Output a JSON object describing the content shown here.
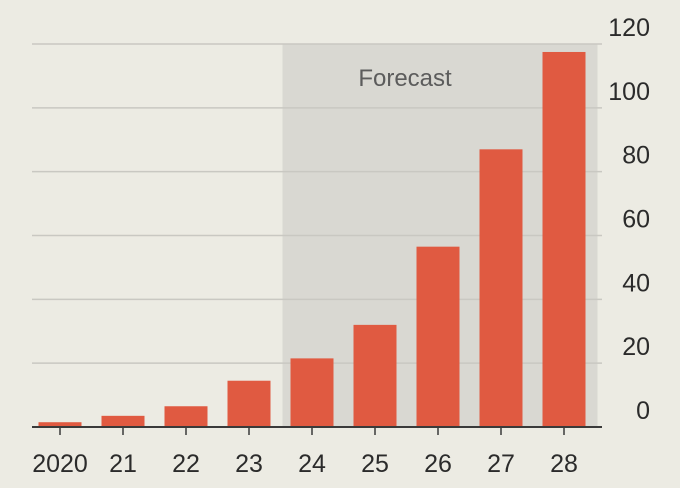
{
  "chart_data": {
    "type": "bar",
    "title": "",
    "xlabel": "",
    "ylabel": "",
    "categories": [
      "2020",
      "21",
      "22",
      "23",
      "24",
      "25",
      "26",
      "27",
      "28"
    ],
    "values": [
      1.5,
      3.5,
      6.5,
      14.5,
      21.5,
      32,
      56.5,
      87,
      117.5
    ],
    "ylim": [
      0,
      120
    ],
    "yticks": [
      0,
      20,
      40,
      60,
      80,
      100,
      120
    ],
    "y_axis_side": "right",
    "grid": true,
    "forecast": {
      "label": "Forecast",
      "from_category": "24",
      "to_category": "28"
    },
    "colors": {
      "bar": "#e05a41",
      "forecast_shade": "#d9d8d2",
      "gridline": "#c9c8c2",
      "baseline": "#3a3a3a",
      "background": "#ecebe3"
    }
  }
}
